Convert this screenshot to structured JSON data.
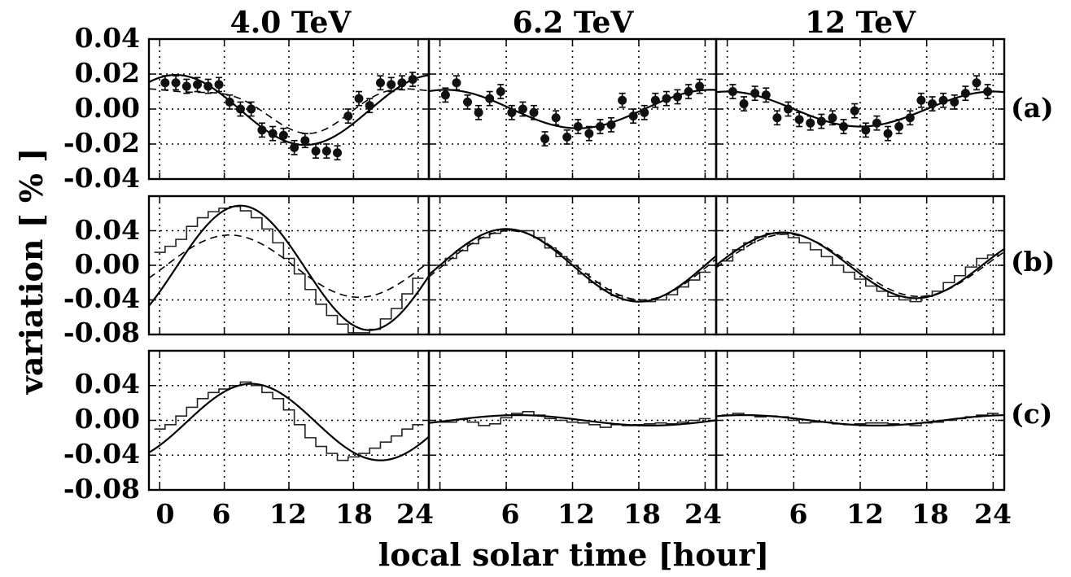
{
  "figure": {
    "ylabel": "variation [ % ]",
    "xlabel": "local solar time [hour]",
    "columns": [
      "4.0 TeV",
      "6.2 TeV",
      "12 TeV"
    ],
    "rows": [
      "(a)",
      "(b)",
      "(c)"
    ],
    "x_ticks": [
      "0",
      "6",
      "12",
      "18",
      "24"
    ]
  },
  "chart_data": {
    "type": "line",
    "xlabel": "local solar time [hour]",
    "ylabel": "variation [ % ]",
    "xlim": [
      -1,
      25
    ],
    "x_ticks": [
      0,
      6,
      12,
      18,
      24
    ],
    "grid": true,
    "columns": [
      "4.0 TeV",
      "6.2 TeV",
      "12 TeV"
    ],
    "panels": [
      {
        "row": "(a)",
        "ylim": [
          -0.04,
          0.04
        ],
        "y_ticks": [
          "0.04",
          "0.02",
          "0.00",
          "-0.02",
          "-0.04"
        ],
        "y_tick_values": [
          0.04,
          0.02,
          0.0,
          -0.02,
          -0.04
        ],
        "energies": [
          {
            "energy": "4.0 TeV",
            "points_x": [
              0.5,
              1.5,
              2.5,
              3.5,
              4.5,
              5.5,
              6.5,
              7.5,
              8.5,
              9.5,
              10.5,
              11.5,
              12.5,
              13.5,
              14.5,
              15.5,
              16.5,
              17.5,
              18.5,
              19.5,
              20.5,
              21.5,
              22.5,
              23.5
            ],
            "points_y": [
              0.015,
              0.015,
              0.013,
              0.014,
              0.013,
              0.014,
              0.004,
              0.0,
              0.0,
              -0.012,
              -0.014,
              -0.015,
              -0.022,
              -0.018,
              -0.024,
              -0.024,
              -0.025,
              -0.004,
              0.006,
              0.002,
              0.015,
              0.014,
              0.015,
              0.017
            ],
            "error": 0.004,
            "solid": {
              "mean": -0.0005,
              "amp1": 0.02,
              "peak1": 1.5,
              "amp2": 0.0,
              "peak2": 0
            },
            "dashed": {
              "mean": 0.002,
              "amp1": 0.012,
              "peak1": 1.5,
              "amp2": 0.004,
              "peak2": 8
            }
          },
          {
            "energy": "6.2 TeV",
            "points_x": [
              0.5,
              1.5,
              2.5,
              3.5,
              4.5,
              5.5,
              6.5,
              7.5,
              8.5,
              9.5,
              10.5,
              11.5,
              12.5,
              13.5,
              14.5,
              15.5,
              16.5,
              17.5,
              18.5,
              19.5,
              20.5,
              21.5,
              22.5,
              23.5
            ],
            "points_y": [
              0.008,
              0.015,
              0.004,
              -0.002,
              0.006,
              0.01,
              -0.002,
              0.0,
              -0.002,
              -0.017,
              -0.005,
              -0.016,
              -0.01,
              -0.014,
              -0.01,
              -0.009,
              0.005,
              -0.004,
              -0.002,
              0.005,
              0.006,
              0.007,
              0.01,
              0.013
            ],
            "error": 0.004,
            "solid": {
              "mean": 0.0,
              "amp1": 0.011,
              "peak1": 0.5,
              "amp2": 0.0,
              "peak2": 0
            },
            "dashed": {
              "mean": 0.0,
              "amp1": 0.011,
              "peak1": 0.5,
              "amp2": 0.0,
              "peak2": 0
            }
          },
          {
            "energy": "12 TeV",
            "points_x": [
              0.5,
              1.5,
              2.5,
              3.5,
              4.5,
              5.5,
              6.5,
              7.5,
              8.5,
              9.5,
              10.5,
              11.5,
              12.5,
              13.5,
              14.5,
              15.5,
              16.5,
              17.5,
              18.5,
              19.5,
              20.5,
              21.5,
              22.5,
              23.5
            ],
            "points_y": [
              0.01,
              0.003,
              0.009,
              0.008,
              -0.005,
              0.0,
              -0.006,
              -0.008,
              -0.007,
              -0.005,
              -0.01,
              -0.001,
              -0.012,
              -0.008,
              -0.014,
              -0.01,
              -0.005,
              0.005,
              0.003,
              0.005,
              0.004,
              0.009,
              0.015,
              0.01
            ],
            "error": 0.004,
            "solid": {
              "mean": 0.0,
              "amp1": 0.01,
              "peak1": 0.0,
              "amp2": 0.0,
              "peak2": 0
            },
            "dashed": {
              "mean": 0.0,
              "amp1": 0.01,
              "peak1": 0.0,
              "amp2": 0.0,
              "peak2": 0
            }
          }
        ]
      },
      {
        "row": "(b)",
        "ylim": [
          -0.08,
          0.08
        ],
        "y_ticks": [
          "0.04",
          "0.00",
          "-0.04",
          "-0.08"
        ],
        "y_tick_values": [
          0.04,
          0.0,
          -0.04,
          -0.08
        ],
        "energies": [
          {
            "energy": "4.0 TeV",
            "hist_x": [
              -0.5,
              0.5,
              1.5,
              2.5,
              3.5,
              4.5,
              5.5,
              6.5,
              7.5,
              8.5,
              9.5,
              10.5,
              11.5,
              12.5,
              13.5,
              14.5,
              15.5,
              16.5,
              17.5,
              18.5,
              19.5,
              20.5,
              21.5,
              22.5,
              23.5
            ],
            "hist_y": [
              0.015,
              0.022,
              0.03,
              0.045,
              0.055,
              0.062,
              0.066,
              0.068,
              0.063,
              0.055,
              0.042,
              0.026,
              0.008,
              -0.01,
              -0.028,
              -0.045,
              -0.058,
              -0.068,
              -0.078,
              -0.078,
              -0.074,
              -0.062,
              -0.05,
              -0.033,
              -0.015
            ],
            "solid": {
              "mean": -0.003,
              "amp1": 0.072,
              "peak1": 7.5,
              "amp2": 0.0,
              "peak2": 0
            },
            "dashed": {
              "mean": -0.001,
              "amp1": 0.036,
              "peak1": 6.5,
              "amp2": 0.0,
              "peak2": 0
            }
          },
          {
            "energy": "6.2 TeV",
            "hist_x": [
              -0.5,
              0.5,
              1.5,
              2.5,
              3.5,
              4.5,
              5.5,
              6.5,
              7.5,
              8.5,
              9.5,
              10.5,
              11.5,
              12.5,
              13.5,
              14.5,
              15.5,
              16.5,
              17.5,
              18.5,
              19.5,
              20.5,
              21.5,
              22.5,
              23.5
            ],
            "hist_y": [
              0.0,
              0.008,
              0.017,
              0.025,
              0.032,
              0.037,
              0.041,
              0.04,
              0.04,
              0.032,
              0.02,
              0.01,
              0.0,
              -0.01,
              -0.02,
              -0.028,
              -0.035,
              -0.04,
              -0.042,
              -0.042,
              -0.04,
              -0.034,
              -0.025,
              -0.017,
              -0.008
            ],
            "solid": {
              "mean": 0.0,
              "amp1": 0.042,
              "peak1": 6.0,
              "amp2": 0.0,
              "peak2": 0
            },
            "dashed": {
              "mean": 0.0,
              "amp1": 0.04,
              "peak1": 6.3,
              "amp2": 0.0,
              "peak2": 0
            }
          },
          {
            "energy": "12 TeV",
            "hist_x": [
              -0.5,
              0.5,
              1.5,
              2.5,
              3.5,
              4.5,
              5.5,
              6.5,
              7.5,
              8.5,
              9.5,
              10.5,
              11.5,
              12.5,
              13.5,
              14.5,
              15.5,
              16.5,
              17.5,
              18.5,
              19.5,
              20.5,
              21.5,
              22.5,
              23.5
            ],
            "hist_y": [
              0.005,
              0.018,
              0.026,
              0.033,
              0.037,
              0.036,
              0.032,
              0.026,
              0.018,
              0.01,
              0.0,
              -0.008,
              -0.016,
              -0.024,
              -0.03,
              -0.036,
              -0.04,
              -0.042,
              -0.036,
              -0.03,
              -0.02,
              -0.012,
              -0.002,
              0.008,
              0.012
            ],
            "solid": {
              "mean": 0.0,
              "amp1": 0.038,
              "peak1": 5.0,
              "amp2": 0.0,
              "peak2": 0
            },
            "dashed": {
              "mean": 0.0,
              "amp1": 0.036,
              "peak1": 5.3,
              "amp2": 0.0,
              "peak2": 0
            }
          }
        ]
      },
      {
        "row": "(c)",
        "ylim": [
          -0.08,
          0.08
        ],
        "y_ticks": [
          "0.04",
          "0.00",
          "-0.04",
          "-0.08"
        ],
        "y_tick_values": [
          0.04,
          0.0,
          -0.04,
          -0.08
        ],
        "energies": [
          {
            "energy": "4.0 TeV",
            "hist_x": [
              -0.5,
              0.5,
              1.5,
              2.5,
              3.5,
              4.5,
              5.5,
              6.5,
              7.5,
              8.5,
              9.5,
              10.5,
              11.5,
              12.5,
              13.5,
              14.5,
              15.5,
              16.5,
              17.5,
              18.5,
              19.5,
              20.5,
              21.5,
              22.5,
              23.5
            ],
            "hist_y": [
              -0.01,
              -0.005,
              0.005,
              0.015,
              0.025,
              0.032,
              0.036,
              0.04,
              0.044,
              0.04,
              0.032,
              0.025,
              0.012,
              -0.005,
              -0.02,
              -0.03,
              -0.038,
              -0.046,
              -0.042,
              -0.038,
              -0.032,
              -0.025,
              -0.018,
              -0.01,
              -0.005
            ],
            "solid": {
              "mean": -0.002,
              "amp1": 0.044,
              "peak1": 8.5,
              "amp2": 0.0,
              "peak2": 0
            }
          },
          {
            "energy": "6.2 TeV",
            "hist_x": [
              -0.5,
              0.5,
              1.5,
              2.5,
              3.5,
              4.5,
              5.5,
              6.5,
              7.5,
              8.5,
              9.5,
              10.5,
              11.5,
              12.5,
              13.5,
              14.5,
              15.5,
              16.5,
              17.5,
              18.5,
              19.5,
              20.5,
              21.5,
              22.5,
              23.5
            ],
            "hist_y": [
              -0.002,
              -0.002,
              0.001,
              -0.002,
              -0.006,
              -0.004,
              0.003,
              0.008,
              0.01,
              0.006,
              0.002,
              0.0,
              -0.002,
              -0.003,
              -0.005,
              -0.008,
              -0.005,
              -0.006,
              -0.005,
              -0.004,
              -0.003,
              -0.004,
              -0.002,
              0.0,
              0.002
            ],
            "solid": {
              "mean": 0.0,
              "amp1": 0.006,
              "peak1": 7.0,
              "amp2": 0.0,
              "peak2": 0
            }
          },
          {
            "energy": "12 TeV",
            "hist_x": [
              -0.5,
              0.5,
              1.5,
              2.5,
              3.5,
              4.5,
              5.5,
              6.5,
              7.5,
              8.5,
              9.5,
              10.5,
              11.5,
              12.5,
              13.5,
              14.5,
              15.5,
              16.5,
              17.5,
              18.5,
              19.5,
              20.5,
              21.5,
              22.5,
              23.5
            ],
            "hist_y": [
              0.006,
              0.008,
              0.006,
              0.004,
              0.005,
              0.004,
              0.0,
              -0.003,
              -0.002,
              -0.002,
              -0.004,
              -0.005,
              -0.004,
              -0.003,
              -0.003,
              -0.004,
              -0.005,
              -0.006,
              -0.003,
              -0.002,
              0.0,
              0.002,
              0.004,
              0.006,
              0.008
            ],
            "solid": {
              "mean": 0.0,
              "amp1": 0.006,
              "peak1": 1.5,
              "amp2": 0.0,
              "peak2": 0
            }
          }
        ]
      }
    ]
  }
}
